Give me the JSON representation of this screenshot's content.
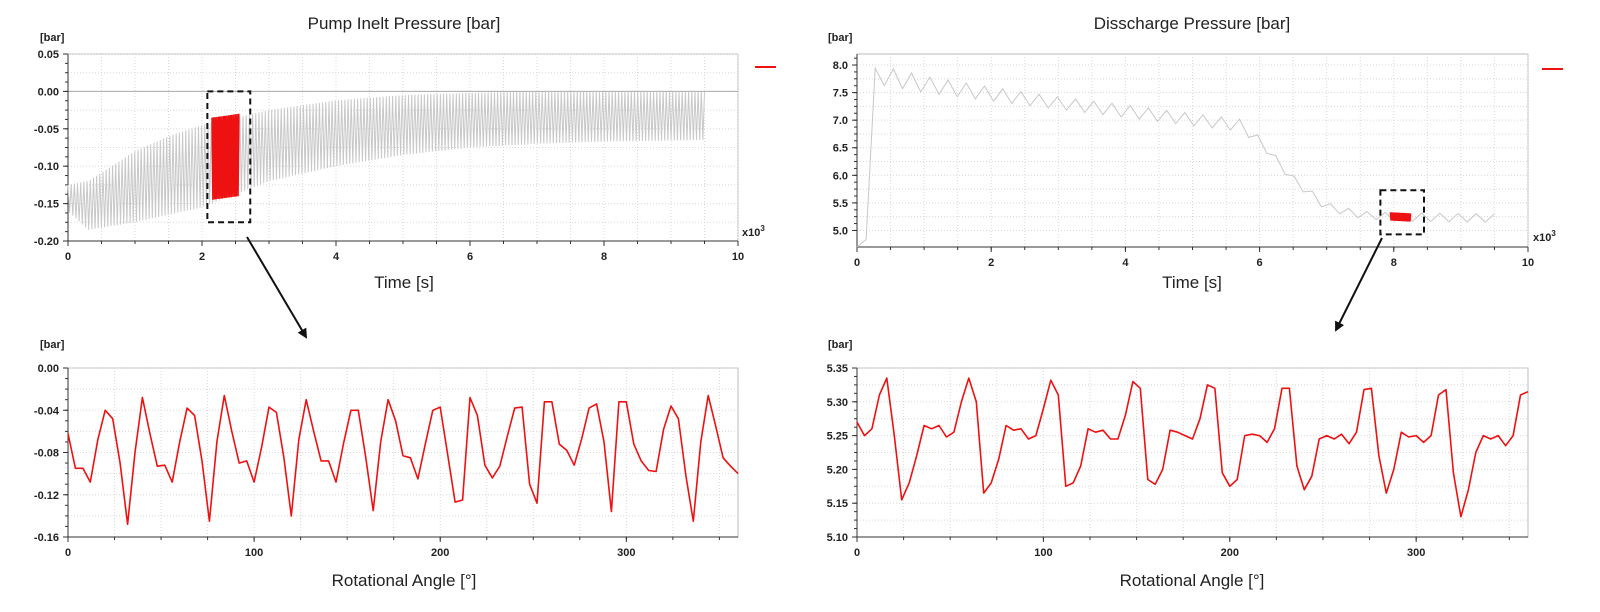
{
  "colors": {
    "raw": "#c8c8c8",
    "highlight": "#ee1111",
    "grid": "#d8d8d8",
    "zero_line": "#aaaaaa"
  },
  "chart_data": [
    {
      "id": "tl",
      "type": "line",
      "title": "Pump Inelt Pressure [bar]",
      "xlabel": "Time [s]",
      "ylabel": "[bar]",
      "x_multiplier": "x10",
      "x_multiplier_exp": "3",
      "xlim": [
        0,
        10
      ],
      "ylim": [
        -0.2,
        0.05
      ],
      "xticks": [
        0,
        2,
        4,
        6,
        8,
        10
      ],
      "yticks": [
        -0.2,
        -0.15,
        -0.1,
        -0.05,
        0.0,
        0.05
      ],
      "ytick_labels": [
        "-0.20",
        "-0.15",
        "-0.10",
        "-0.05",
        "0.00",
        "0.05"
      ],
      "legend": "top-right",
      "series": [
        {
          "role": "raw",
          "color": "#c8c8c8",
          "x_range": [
            0,
            9.5
          ],
          "cycles": 200,
          "upper": [
            [
              0,
              -0.125
            ],
            [
              0.3,
              -0.12
            ],
            [
              1,
              -0.08
            ],
            [
              1.5,
              -0.06
            ],
            [
              2,
              -0.045
            ],
            [
              3,
              -0.025
            ],
            [
              4,
              -0.012
            ],
            [
              5,
              -0.005
            ],
            [
              6,
              -0.002
            ],
            [
              7,
              0.0
            ],
            [
              8,
              0.0
            ],
            [
              9.5,
              0.0
            ]
          ],
          "lower": [
            [
              0,
              -0.16
            ],
            [
              0.3,
              -0.185
            ],
            [
              1,
              -0.175
            ],
            [
              2,
              -0.155
            ],
            [
              3,
              -0.12
            ],
            [
              4,
              -0.1
            ],
            [
              5,
              -0.085
            ],
            [
              6,
              -0.075
            ],
            [
              7,
              -0.07
            ],
            [
              8,
              -0.067
            ],
            [
              9.5,
              -0.065
            ]
          ]
        },
        {
          "role": "highlight",
          "color": "#ee1111",
          "x_range": [
            2.15,
            2.55
          ],
          "cycles": 16,
          "upper": [
            [
              2.15,
              -0.035
            ],
            [
              2.55,
              -0.03
            ]
          ],
          "lower": [
            [
              2.15,
              -0.145
            ],
            [
              2.55,
              -0.14
            ]
          ]
        }
      ],
      "zoom_box": {
        "x": [
          2.08,
          2.72
        ],
        "y": [
          -0.175,
          0.0
        ]
      }
    },
    {
      "id": "tr",
      "type": "line",
      "title": "Disscharge Pressure [bar]",
      "xlabel": "Time [s]",
      "ylabel": "[bar]",
      "x_multiplier": "x10",
      "x_multiplier_exp": "3",
      "xlim": [
        0,
        10
      ],
      "ylim": [
        4.7,
        8.2
      ],
      "xticks": [
        0,
        2,
        4,
        6,
        8,
        10
      ],
      "yticks": [
        5.0,
        5.5,
        6.0,
        6.5,
        7.0,
        7.5,
        8.0
      ],
      "ytick_labels": [
        "5.0",
        "5.5",
        "6.0",
        "6.5",
        "7.0",
        "7.5",
        "8.0"
      ],
      "legend": "top-right",
      "series": [
        {
          "role": "raw",
          "color": "#c8c8c8",
          "x_range": [
            0,
            9.5
          ],
          "cycles": 35,
          "upper": [
            [
              0,
              4.7
            ],
            [
              0.2,
              4.9
            ],
            [
              0.25,
              7.9
            ],
            [
              0.3,
              8.0
            ],
            [
              1,
              7.8
            ],
            [
              2,
              7.6
            ],
            [
              3,
              7.42
            ],
            [
              4,
              7.28
            ],
            [
              5,
              7.12
            ],
            [
              5.7,
              7.02
            ],
            [
              6,
              6.7
            ],
            [
              6.5,
              6.0
            ],
            [
              7,
              5.5
            ],
            [
              7.5,
              5.35
            ],
            [
              8,
              5.32
            ],
            [
              9.5,
              5.3
            ]
          ],
          "lower": [
            [
              0,
              4.7
            ],
            [
              0.2,
              4.9
            ],
            [
              0.25,
              7.7
            ],
            [
              0.3,
              7.65
            ],
            [
              1,
              7.5
            ],
            [
              2,
              7.35
            ],
            [
              3,
              7.2
            ],
            [
              4,
              7.05
            ],
            [
              5,
              6.9
            ],
            [
              5.7,
              6.8
            ],
            [
              6,
              6.55
            ],
            [
              6.5,
              5.85
            ],
            [
              7,
              5.35
            ],
            [
              7.5,
              5.22
            ],
            [
              8,
              5.17
            ],
            [
              9.5,
              5.15
            ]
          ]
        },
        {
          "role": "highlight",
          "color": "#ee1111",
          "x_range": [
            7.95,
            8.25
          ],
          "cycles": 16,
          "upper": [
            [
              7.95,
              5.33
            ],
            [
              8.25,
              5.31
            ]
          ],
          "lower": [
            [
              7.95,
              5.18
            ],
            [
              8.25,
              5.16
            ]
          ]
        }
      ],
      "zoom_box": {
        "x": [
          7.8,
          8.45
        ],
        "y": [
          4.93,
          5.73
        ]
      }
    },
    {
      "id": "bl",
      "type": "line",
      "title": "",
      "xlabel": "Rotational Angle [°]",
      "ylabel": "[bar]",
      "xlim": [
        0,
        360
      ],
      "ylim": [
        -0.16,
        0.0
      ],
      "xticks": [
        0,
        100,
        200,
        300
      ],
      "yticks": [
        -0.16,
        -0.12,
        -0.08,
        -0.04,
        0.0
      ],
      "ytick_labels": [
        "-0.16",
        "-0.12",
        "-0.08",
        "-0.04",
        "0.00"
      ],
      "series": [
        {
          "color": "#ee1111",
          "x": [
            0,
            4,
            8,
            12,
            16,
            20,
            24,
            28,
            32,
            36,
            40,
            44,
            48,
            52,
            56,
            60,
            64,
            68,
            72,
            76,
            80,
            84,
            88,
            92,
            96,
            100,
            104,
            108,
            112,
            116,
            120,
            124,
            128,
            132,
            136,
            140,
            144,
            148,
            152,
            156,
            160,
            164,
            168,
            172,
            176,
            180,
            184,
            188,
            192,
            196,
            200,
            204,
            208,
            212,
            216,
            220,
            224,
            228,
            232,
            236,
            240,
            244,
            248,
            252,
            256,
            260,
            264,
            268,
            272,
            276,
            280,
            284,
            288,
            292,
            296,
            300,
            304,
            308,
            312,
            316,
            320,
            324,
            328,
            332,
            336,
            340,
            344,
            348,
            352,
            356,
            360
          ],
          "y": [
            -0.062,
            -0.095,
            -0.095,
            -0.108,
            -0.068,
            -0.04,
            -0.048,
            -0.09,
            -0.148,
            -0.08,
            -0.028,
            -0.062,
            -0.093,
            -0.092,
            -0.108,
            -0.07,
            -0.038,
            -0.045,
            -0.088,
            -0.145,
            -0.07,
            -0.026,
            -0.06,
            -0.09,
            -0.088,
            -0.108,
            -0.075,
            -0.037,
            -0.042,
            -0.085,
            -0.14,
            -0.068,
            -0.03,
            -0.06,
            -0.088,
            -0.088,
            -0.108,
            -0.072,
            -0.04,
            -0.04,
            -0.085,
            -0.135,
            -0.07,
            -0.03,
            -0.05,
            -0.083,
            -0.085,
            -0.105,
            -0.072,
            -0.04,
            -0.037,
            -0.082,
            -0.127,
            -0.125,
            -0.028,
            -0.045,
            -0.092,
            -0.104,
            -0.093,
            -0.065,
            -0.038,
            -0.037,
            -0.11,
            -0.128,
            -0.032,
            -0.032,
            -0.072,
            -0.078,
            -0.092,
            -0.067,
            -0.038,
            -0.034,
            -0.07,
            -0.136,
            -0.032,
            -0.032,
            -0.072,
            -0.088,
            -0.097,
            -0.098,
            -0.058,
            -0.036,
            -0.048,
            -0.102,
            -0.145,
            -0.07,
            -0.026,
            -0.055,
            -0.085,
            -0.093,
            -0.1
          ]
        }
      ]
    },
    {
      "id": "br",
      "type": "line",
      "title": "",
      "xlabel": "Rotational Angle [°]",
      "ylabel": "[bar]",
      "xlim": [
        0,
        360
      ],
      "ylim": [
        5.1,
        5.35
      ],
      "xticks": [
        0,
        100,
        200,
        300
      ],
      "yticks": [
        5.1,
        5.15,
        5.2,
        5.25,
        5.3,
        5.35
      ],
      "ytick_labels": [
        "5.10",
        "5.15",
        "5.20",
        "5.25",
        "5.30",
        "5.35"
      ],
      "series": [
        {
          "color": "#ee1111",
          "x": [
            0,
            4,
            8,
            12,
            16,
            20,
            24,
            28,
            32,
            36,
            40,
            44,
            48,
            52,
            56,
            60,
            64,
            68,
            72,
            76,
            80,
            84,
            88,
            92,
            96,
            100,
            104,
            108,
            112,
            116,
            120,
            124,
            128,
            132,
            136,
            140,
            144,
            148,
            152,
            156,
            160,
            164,
            168,
            172,
            176,
            180,
            184,
            188,
            192,
            196,
            200,
            204,
            208,
            212,
            216,
            220,
            224,
            228,
            232,
            236,
            240,
            244,
            248,
            252,
            256,
            260,
            264,
            268,
            272,
            276,
            280,
            284,
            288,
            292,
            296,
            300,
            304,
            308,
            312,
            316,
            320,
            324,
            328,
            332,
            336,
            340,
            344,
            348,
            352,
            356,
            360
          ],
          "y": [
            5.27,
            5.25,
            5.26,
            5.31,
            5.335,
            5.25,
            5.155,
            5.18,
            5.22,
            5.265,
            5.26,
            5.265,
            5.248,
            5.255,
            5.3,
            5.335,
            5.3,
            5.165,
            5.18,
            5.215,
            5.265,
            5.258,
            5.26,
            5.245,
            5.25,
            5.29,
            5.332,
            5.31,
            5.175,
            5.18,
            5.205,
            5.26,
            5.255,
            5.258,
            5.245,
            5.245,
            5.28,
            5.33,
            5.32,
            5.185,
            5.178,
            5.2,
            5.258,
            5.255,
            5.25,
            5.245,
            5.275,
            5.325,
            5.32,
            5.195,
            5.175,
            5.185,
            5.25,
            5.252,
            5.25,
            5.24,
            5.26,
            5.32,
            5.32,
            5.205,
            5.17,
            5.19,
            5.245,
            5.25,
            5.245,
            5.252,
            5.238,
            5.255,
            5.318,
            5.32,
            5.22,
            5.165,
            5.2,
            5.255,
            5.248,
            5.25,
            5.24,
            5.25,
            5.31,
            5.318,
            5.195,
            5.13,
            5.17,
            5.225,
            5.25,
            5.245,
            5.25,
            5.235,
            5.25,
            5.31,
            5.315
          ]
        }
      ]
    }
  ]
}
